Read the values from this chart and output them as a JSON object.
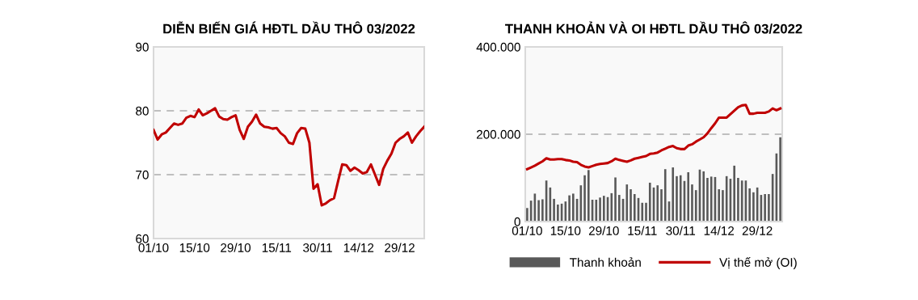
{
  "chart_data": [
    {
      "type": "line",
      "title": "DIỄN BIẾN GIÁ HĐTL DẦU THÔ 03/2022",
      "categories": [
        "01/10",
        null,
        null,
        null,
        null,
        null,
        null,
        null,
        null,
        null,
        "15/10",
        null,
        null,
        null,
        null,
        null,
        null,
        null,
        null,
        null,
        "29/10",
        null,
        null,
        null,
        null,
        null,
        null,
        null,
        null,
        null,
        "15/11",
        null,
        null,
        null,
        null,
        null,
        null,
        null,
        null,
        null,
        "30/11",
        null,
        null,
        null,
        null,
        null,
        null,
        null,
        null,
        null,
        "14/12",
        null,
        null,
        null,
        null,
        null,
        null,
        null,
        null,
        null,
        "29/12",
        null,
        null,
        null,
        null,
        null,
        null
      ],
      "series": [
        {
          "color": "#c00000",
          "values": [
            77.0,
            75.5,
            76.3,
            76.6,
            77.3,
            78.0,
            77.8,
            78.0,
            78.9,
            79.2,
            79.0,
            80.2,
            79.3,
            79.6,
            80.0,
            80.4,
            79.1,
            78.7,
            78.6,
            79.0,
            79.3,
            77.0,
            75.6,
            77.5,
            78.3,
            79.4,
            78.0,
            77.5,
            77.4,
            77.2,
            77.3,
            76.5,
            76.0,
            75.0,
            74.8,
            76.5,
            77.3,
            77.2,
            75.0,
            67.8,
            68.5,
            65.2,
            65.5,
            66.0,
            66.3,
            69.0,
            71.6,
            71.5,
            70.6,
            71.1,
            70.7,
            70.2,
            70.4,
            71.6,
            70.0,
            68.4,
            70.9,
            72.2,
            73.3,
            75.0,
            75.6,
            76.0,
            76.6,
            75.0,
            76.0,
            76.8,
            77.5
          ]
        }
      ],
      "ylim": [
        60,
        90
      ],
      "yticks": [
        60,
        70,
        80,
        90
      ],
      "grid": "y",
      "line_style": "solid",
      "marker": "none",
      "legend": false
    },
    {
      "type": "bar",
      "title": "THANH KHOẢN VÀ OI HĐTL DẦU THÔ 03/2022",
      "categories": [
        "01/10",
        null,
        null,
        null,
        null,
        null,
        null,
        null,
        null,
        null,
        "15/10",
        null,
        null,
        null,
        null,
        null,
        null,
        null,
        null,
        null,
        "29/10",
        null,
        null,
        null,
        null,
        null,
        null,
        null,
        null,
        null,
        "15/11",
        null,
        null,
        null,
        null,
        null,
        null,
        null,
        null,
        null,
        "30/11",
        null,
        null,
        null,
        null,
        null,
        null,
        null,
        null,
        null,
        "14/12",
        null,
        null,
        null,
        null,
        null,
        null,
        null,
        null,
        null,
        "29/12",
        null,
        null,
        null,
        null,
        null,
        null
      ],
      "series": [
        {
          "type": "bar",
          "name": "Thanh khoản",
          "color": "#595959",
          "values": [
            31000,
            48000,
            64000,
            49000,
            51000,
            94000,
            78000,
            52000,
            39000,
            41000,
            46000,
            60000,
            64000,
            52000,
            83000,
            106000,
            118000,
            50000,
            50000,
            55000,
            59000,
            56000,
            65000,
            101000,
            61000,
            52000,
            85000,
            74000,
            63000,
            54000,
            43000,
            43000,
            89000,
            78000,
            83000,
            74000,
            120000,
            46000,
            124000,
            104000,
            106000,
            93000,
            113000,
            85000,
            72000,
            119000,
            115000,
            100000,
            103000,
            102000,
            74000,
            72000,
            104000,
            98000,
            128000,
            100000,
            94000,
            94000,
            76000,
            67000,
            78000,
            61000,
            63000,
            63000,
            109000,
            156000,
            193000
          ]
        },
        {
          "type": "line",
          "name": "Vị thế mở (OI)",
          "color": "#c00000",
          "values": [
            120000,
            124000,
            128000,
            133000,
            138000,
            145000,
            142000,
            142000,
            143000,
            143000,
            141000,
            140000,
            137000,
            136000,
            130000,
            126000,
            124000,
            127000,
            130000,
            132000,
            133000,
            134000,
            138000,
            144000,
            141000,
            139000,
            137000,
            140000,
            144000,
            146000,
            148000,
            150000,
            155000,
            156000,
            158000,
            163000,
            167000,
            171000,
            173000,
            168000,
            166000,
            166000,
            174000,
            177000,
            183000,
            188000,
            193000,
            202000,
            214000,
            225000,
            238000,
            238000,
            238000,
            246000,
            254000,
            262000,
            266000,
            267000,
            247000,
            247000,
            249000,
            249000,
            249000,
            252000,
            259000,
            255000,
            259000
          ]
        }
      ],
      "ylim": [
        0,
        400000
      ],
      "yticks": [
        {
          "value": 0,
          "label": "0"
        },
        {
          "value": 200000,
          "label": "200.000"
        },
        {
          "value": 400000,
          "label": "400.000"
        }
      ],
      "grid": "y",
      "line_style": "solid",
      "marker": "none",
      "legend": "bottom"
    }
  ]
}
